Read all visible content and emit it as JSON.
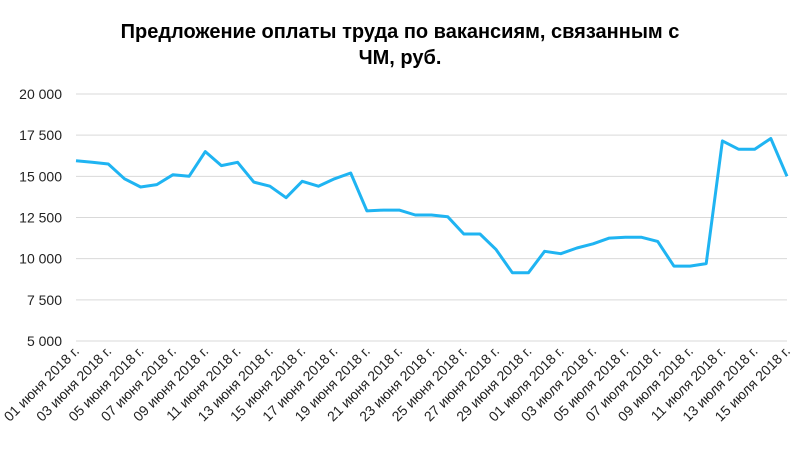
{
  "chart_data": {
    "type": "line",
    "title": "Предложение оплаты труда по вакансиям, связанным с ЧМ, руб.",
    "categories": [
      "01 июня 2018 г.",
      null,
      "03 июня 2018 г.",
      null,
      "05 июня 2018 г.",
      null,
      "07 июня 2018 г.",
      null,
      "09 июня 2018 г.",
      null,
      "11 июня 2018 г.",
      null,
      "13 июня 2018 г.",
      null,
      "15 июня 2018 г.",
      null,
      "17 июня 2018 г.",
      null,
      "19 июня 2018 г.",
      null,
      "21 июня 2018 г.",
      null,
      "23 июня 2018 г.",
      null,
      "25 июня 2018 г.",
      null,
      "27 июня 2018 г.",
      null,
      "29 июня 2018 г.",
      null,
      "01 июля 2018 г.",
      null,
      "03 июля 2018 г.",
      null,
      "05 июля 2018 г.",
      null,
      "07 июля 2018 г.",
      null,
      "09 июля 2018 г.",
      null,
      "11 июля 2018 г.",
      null,
      "13 июля 2018 г.",
      null,
      "15 июля 2018 г."
    ],
    "series": [
      {
        "color": "#1fb4f2",
        "values": [
          15950,
          15850,
          15750,
          14850,
          14350,
          14500,
          15100,
          15000,
          16500,
          15650,
          15850,
          14650,
          14400,
          13700,
          14700,
          14400,
          14850,
          15200,
          12900,
          12950,
          12950,
          12650,
          12650,
          12550,
          11500,
          11500,
          10550,
          9150,
          9150,
          10450,
          10300,
          10650,
          10900,
          11250,
          11300,
          11300,
          11050,
          9550,
          9550,
          9700,
          17150,
          16650,
          16650,
          17300,
          15000
        ]
      }
    ],
    "ylim": [
      5000,
      20000
    ],
    "yticks": [
      {
        "value": 5000,
        "label": "5 000"
      },
      {
        "value": 7500,
        "label": "7 500"
      },
      {
        "value": 10000,
        "label": "10 000"
      },
      {
        "value": 12500,
        "label": "12 500"
      },
      {
        "value": 15000,
        "label": "15 000"
      },
      {
        "value": 17500,
        "label": "17 500"
      },
      {
        "value": 20000,
        "label": "20 000"
      }
    ],
    "grid": true
  }
}
